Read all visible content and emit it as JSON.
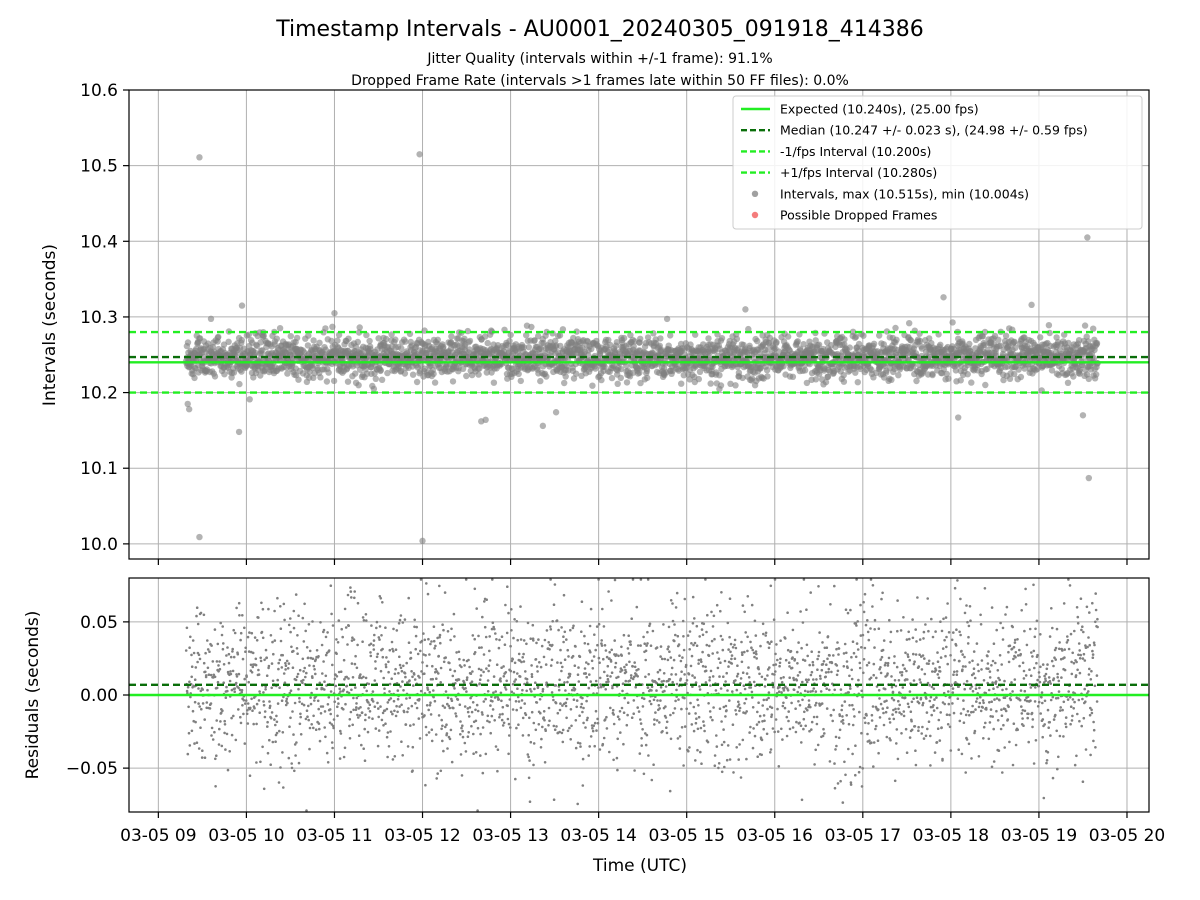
{
  "title": "Timestamp Intervals - AU0001_20240305_091918_414386",
  "subtitle1": "Jitter Quality (intervals within +/-1 frame): 91.1%",
  "subtitle2": "Dropped Frame Rate (intervals >1 frames late within 50 FF files): 0.0%",
  "colors": {
    "expected": "#22ee22",
    "median": "#0a6e0a",
    "fps_bounds": "#22ee22",
    "points": "#808080",
    "dropped": "#f05050",
    "grid": "#b0b0b0"
  },
  "chart_data": [
    {
      "type": "scatter",
      "panel": "intervals",
      "ylabel": "Intervals (seconds)",
      "xlim": [
        "2024-03-05 08:40",
        "2024-03-05 20:15"
      ],
      "ylim": [
        9.98,
        10.6
      ],
      "yticks": [
        "10.0",
        "10.1",
        "10.2",
        "10.3",
        "10.4",
        "10.5",
        "10.6"
      ],
      "grid": true,
      "legend_position": "top-right",
      "reference_lines": [
        {
          "name": "Expected (10.240s), (25.00 fps)",
          "y": 10.24,
          "style": "solid",
          "color": "#22ee22"
        },
        {
          "name": "Median (10.247 +/- 0.023 s), (24.98 +/- 0.59 fps)",
          "y": 10.247,
          "style": "dashed",
          "color": "#0a6e0a"
        },
        {
          "name": "-1/fps Interval (10.200s)",
          "y": 10.2,
          "style": "dashed",
          "color": "#22ee22"
        },
        {
          "name": "+1/fps Interval (10.280s)",
          "y": 10.28,
          "style": "dashed",
          "color": "#22ee22"
        }
      ],
      "series": [
        {
          "name": "Intervals, max (10.515s), min (10.004s)",
          "distribution": {
            "start": "2024-03-05 09:19",
            "end": "2024-03-05 19:40",
            "center": 10.247,
            "spread": 0.023
          },
          "outliers": [
            {
              "x": "2024-03-05 09:20",
              "y": 10.185
            },
            {
              "x": "2024-03-05 09:21",
              "y": 10.178
            },
            {
              "x": "2024-03-05 09:28",
              "y": 10.511
            },
            {
              "x": "2024-03-05 09:28",
              "y": 10.009
            },
            {
              "x": "2024-03-05 09:55",
              "y": 10.148
            },
            {
              "x": "2024-03-05 09:57",
              "y": 10.315
            },
            {
              "x": "2024-03-05 11:00",
              "y": 10.305
            },
            {
              "x": "2024-03-05 11:58",
              "y": 10.515
            },
            {
              "x": "2024-03-05 12:00",
              "y": 10.004
            },
            {
              "x": "2024-03-05 12:40",
              "y": 10.162
            },
            {
              "x": "2024-03-05 12:43",
              "y": 10.164
            },
            {
              "x": "2024-03-05 13:22",
              "y": 10.156
            },
            {
              "x": "2024-03-05 13:31",
              "y": 10.174
            },
            {
              "x": "2024-03-05 15:40",
              "y": 10.31
            },
            {
              "x": "2024-03-05 17:55",
              "y": 10.326
            },
            {
              "x": "2024-03-05 18:05",
              "y": 10.167
            },
            {
              "x": "2024-03-05 18:55",
              "y": 10.316
            },
            {
              "x": "2024-03-05 19:30",
              "y": 10.17
            },
            {
              "x": "2024-03-05 19:33",
              "y": 10.405
            },
            {
              "x": "2024-03-05 19:34",
              "y": 10.087
            }
          ]
        },
        {
          "name": "Possible Dropped Frames",
          "points": []
        }
      ]
    },
    {
      "type": "scatter",
      "panel": "residuals",
      "ylabel": "Residuals (seconds)",
      "xlabel": "Time (UTC)",
      "xlim": [
        "2024-03-05 08:40",
        "2024-03-05 20:15"
      ],
      "ylim": [
        -0.08,
        0.08
      ],
      "yticks": [
        "−0.05",
        "0.00",
        "0.05"
      ],
      "xticks": [
        "03-05 09",
        "03-05 10",
        "03-05 11",
        "03-05 12",
        "03-05 13",
        "03-05 14",
        "03-05 15",
        "03-05 16",
        "03-05 17",
        "03-05 18",
        "03-05 19",
        "03-05 20"
      ],
      "grid": true,
      "reference_lines": [
        {
          "y": 0.0,
          "style": "solid",
          "color": "#22ee22"
        },
        {
          "y": 0.007,
          "style": "dashed",
          "color": "#0a6e0a"
        }
      ],
      "series": [
        {
          "name": "Residuals",
          "distribution": {
            "start": "2024-03-05 09:19",
            "end": "2024-03-05 19:40",
            "center": 0.007,
            "spread": 0.028
          }
        }
      ]
    }
  ]
}
